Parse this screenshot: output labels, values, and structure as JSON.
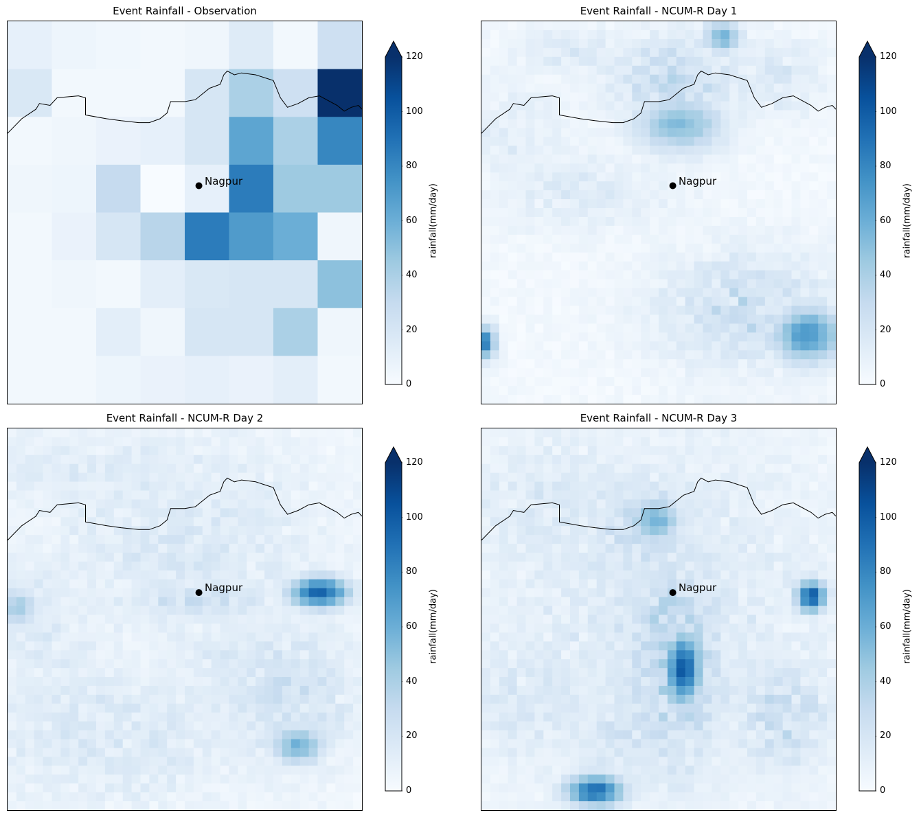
{
  "chart_data": [
    {
      "type": "heatmap",
      "title": "Event Rainfall - Observation",
      "colormap": "Blues",
      "grid": [
        8,
        8
      ],
      "values": [
        [
          10,
          6,
          4,
          3,
          5,
          15,
          3,
          25
        ],
        [
          18,
          3,
          3,
          3,
          20,
          40,
          25,
          120
        ],
        [
          3,
          5,
          8,
          10,
          20,
          65,
          40,
          80
        ],
        [
          5,
          6,
          30,
          0,
          10,
          85,
          45,
          45
        ],
        [
          3,
          8,
          20,
          35,
          85,
          70,
          60,
          5
        ],
        [
          3,
          5,
          3,
          12,
          18,
          20,
          20,
          50
        ],
        [
          3,
          3,
          12,
          5,
          20,
          20,
          40,
          5
        ],
        [
          3,
          3,
          6,
          8,
          10,
          8,
          12,
          3
        ]
      ],
      "colorbar": {
        "label": "rainfall(mm/day)",
        "ticks": [
          0,
          20,
          40,
          60,
          80,
          100,
          120
        ],
        "range": [
          0,
          120
        ],
        "extend": "max"
      },
      "annotation": "Nagpur"
    },
    {
      "type": "heatmap",
      "title": "Event Rainfall - NCUM-R Day 1",
      "colormap": "Blues",
      "hotspots": [
        {
          "desc": "north",
          "value": 55
        },
        {
          "desc": "central-north",
          "value": 50
        },
        {
          "desc": "west edge",
          "value": 85
        },
        {
          "desc": "south-east",
          "value": 70
        }
      ],
      "colorbar": {
        "label": "rainfall(mm/day)",
        "ticks": [
          0,
          20,
          40,
          60,
          80,
          100,
          120
        ],
        "range": [
          0,
          120
        ],
        "extend": "max"
      },
      "annotation": "Nagpur"
    },
    {
      "type": "heatmap",
      "title": "Event Rainfall - NCUM-R Day 2",
      "colormap": "Blues",
      "hotspots": [
        {
          "desc": "east",
          "value": 95
        },
        {
          "desc": "south-east",
          "value": 55
        },
        {
          "desc": "west",
          "value": 40
        }
      ],
      "colorbar": {
        "label": "rainfall(mm/day)",
        "ticks": [
          0,
          20,
          40,
          60,
          80,
          100,
          120
        ],
        "range": [
          0,
          120
        ],
        "extend": "max"
      },
      "annotation": "Nagpur"
    },
    {
      "type": "heatmap",
      "title": "Event Rainfall - NCUM-R Day 3",
      "colormap": "Blues",
      "hotspots": [
        {
          "desc": "central south of Nagpur",
          "value": 100
        },
        {
          "desc": "east",
          "value": 100
        },
        {
          "desc": "south",
          "value": 90
        },
        {
          "desc": "north",
          "value": 55
        }
      ],
      "colorbar": {
        "label": "rainfall(mm/day)",
        "ticks": [
          0,
          20,
          40,
          60,
          80,
          100,
          120
        ],
        "range": [
          0,
          120
        ],
        "extend": "max"
      },
      "annotation": "Nagpur"
    }
  ]
}
